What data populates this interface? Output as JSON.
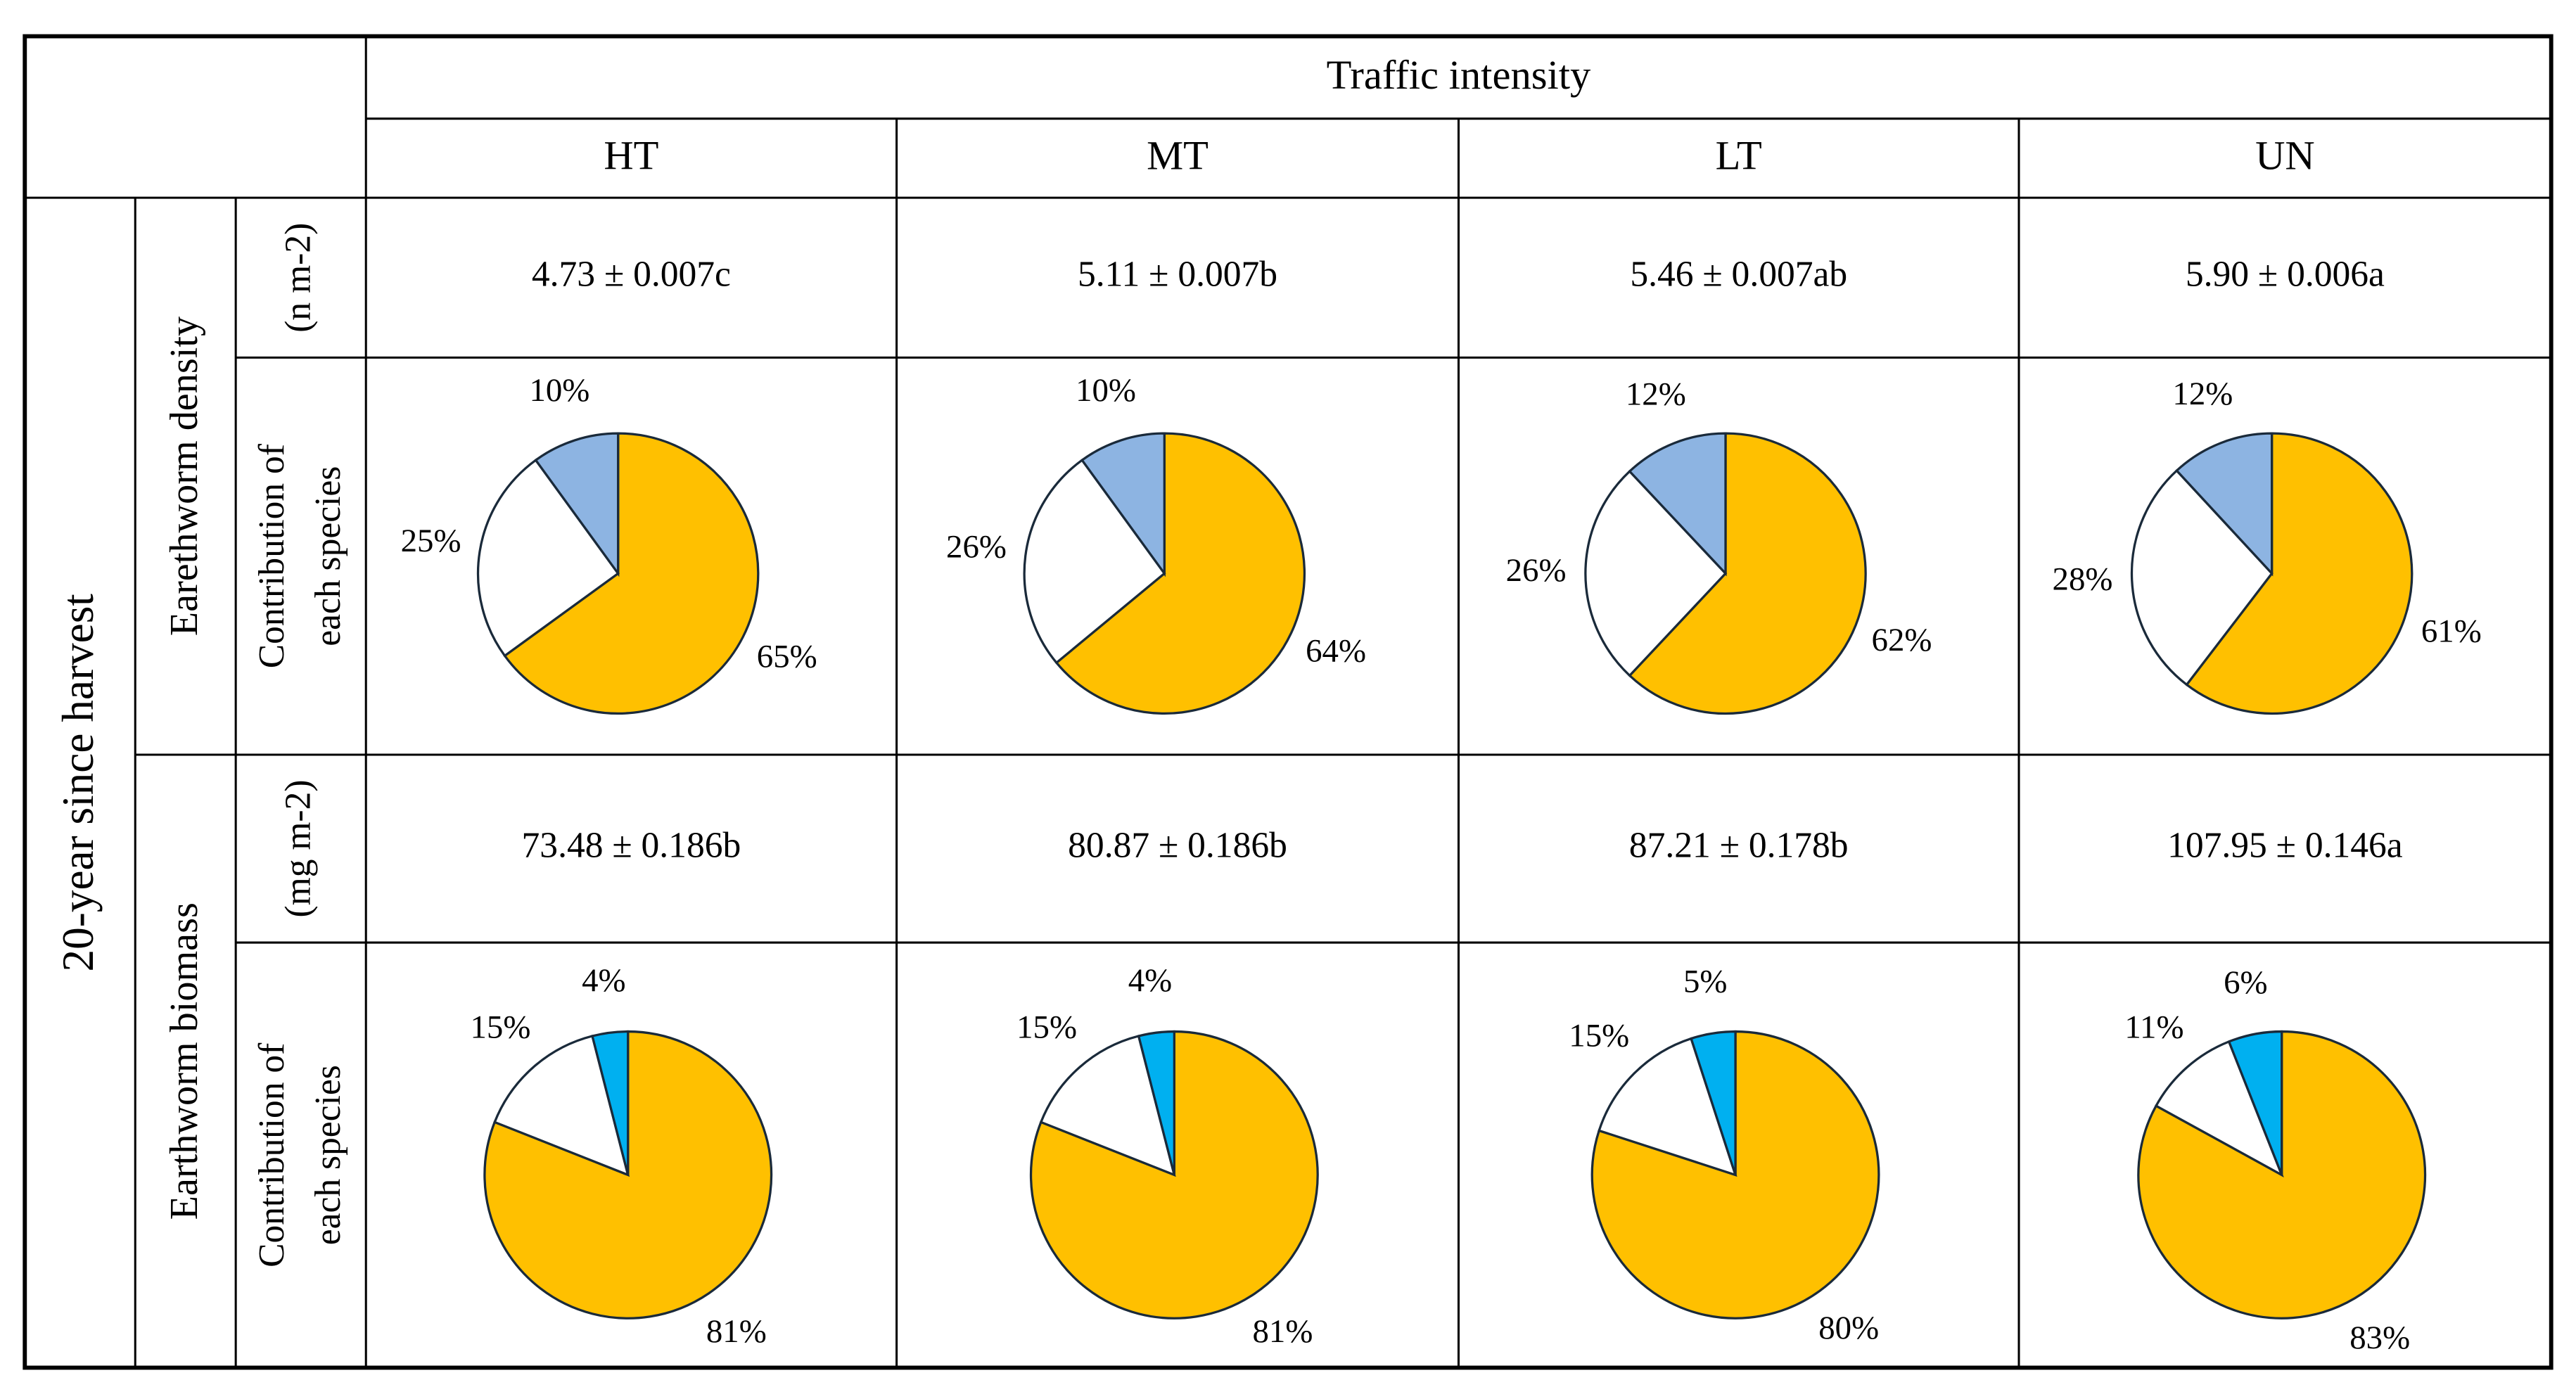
{
  "table": {
    "header": {
      "group": "Traffic intensity",
      "columns": [
        "HT",
        "MT",
        "LT",
        "UN"
      ]
    },
    "row_group": "20-year since harvest",
    "sections": [
      {
        "label": "Earethworm density",
        "unit": "(n m-2)",
        "values": [
          "4.73 ± 0.007c",
          "5.11 ± 0.007b",
          "5.46 ± 0.007ab",
          "5.90 ± 0.006a"
        ],
        "pie_label": [
          "Contribution of",
          "each species"
        ],
        "colors": [
          "#FFC000",
          "#FFFFFF",
          "#8DB4E2"
        ],
        "pies": [
          {
            "values": [
              65,
              25,
              10
            ],
            "value_labels": [
              "65%",
              "25%",
              "10%"
            ]
          },
          {
            "values": [
              64,
              26,
              10
            ],
            "value_labels": [
              "64%",
              "26%",
              "10%"
            ]
          },
          {
            "values": [
              62,
              26,
              12
            ],
            "value_labels": [
              "62%",
              "26%",
              "12%"
            ]
          },
          {
            "values": [
              61,
              28,
              12
            ],
            "value_labels": [
              "61%",
              "28%",
              "12%"
            ]
          }
        ]
      },
      {
        "label": "Earthworm biomass",
        "unit": "(mg m-2)",
        "values": [
          "73.48 ± 0.186b",
          "80.87 ± 0.186b",
          "87.21 ± 0.178b",
          "107.95 ± 0.146a"
        ],
        "pie_label": [
          "Contribution of",
          "each species"
        ],
        "colors": [
          "#FFC000",
          "#FFFFFF",
          "#00B0F0"
        ],
        "pies": [
          {
            "values": [
              81,
              15,
              4
            ],
            "value_labels": [
              "81%",
              "15%",
              "4%"
            ]
          },
          {
            "values": [
              81,
              15,
              4
            ],
            "value_labels": [
              "81%",
              "15%",
              "4%"
            ]
          },
          {
            "values": [
              80,
              15,
              5
            ],
            "value_labels": [
              "80%",
              "15%",
              "5%"
            ]
          },
          {
            "values": [
              83,
              11,
              6
            ],
            "value_labels": [
              "83%",
              "11%",
              "6%"
            ]
          }
        ]
      }
    ]
  }
}
